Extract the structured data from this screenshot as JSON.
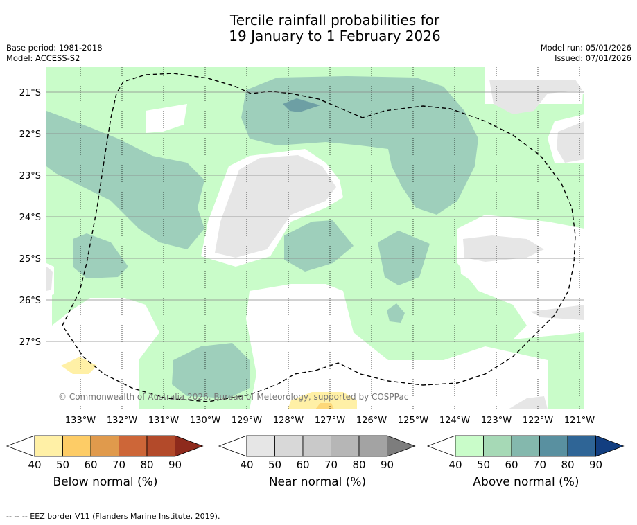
{
  "title_line1": "Tercile rainfall probabilities for",
  "title_line2": "19 January to 1 February 2026",
  "base_period": "Base period: 1981-2018",
  "model": "Model: ACCESS-S2",
  "model_run": "Model run: 05/01/2026",
  "issued": "Issued: 07/01/2026",
  "copyright": "© Commonwealth of Australia 2026, Bureau of Meteorology, supported by COSPPac",
  "lat_labels": [
    "21°S",
    "22°S",
    "23°S",
    "24°S",
    "25°S",
    "26°S",
    "27°S"
  ],
  "lon_labels": [
    "133°W",
    "132°W",
    "131°W",
    "130°W",
    "129°W",
    "128°W",
    "127°W",
    "126°W",
    "125°W",
    "124°W",
    "123°W",
    "122°W",
    "121°W"
  ],
  "colorbars": [
    {
      "title": "Below normal (%)",
      "ticks": [
        "40",
        "50",
        "60",
        "70",
        "80",
        "90"
      ],
      "colors": [
        "#ffffff",
        "#fff0a6",
        "#fdcc66",
        "#e09a4c",
        "#cd6638",
        "#b34a2a",
        "#8e2a1c"
      ]
    },
    {
      "title": "Near normal (%)",
      "ticks": [
        "40",
        "50",
        "60",
        "70",
        "80",
        "90"
      ],
      "colors": [
        "#ffffff",
        "#e6e6e6",
        "#d8d8d8",
        "#c9c9c9",
        "#b6b6b6",
        "#a3a3a3",
        "#7d7d7d"
      ]
    },
    {
      "title": "Above normal (%)",
      "ticks": [
        "40",
        "50",
        "60",
        "70",
        "80",
        "90"
      ],
      "colors": [
        "#ffffff",
        "#c9fcc9",
        "#a6d9b6",
        "#84b8ad",
        "#5990a0",
        "#2f6596",
        "#123e80"
      ]
    }
  ],
  "footnote": "--  --  -- EEZ border V11 (Flanders Marine Institute, 2019).",
  "colors": {
    "above40": "#c9fcc9",
    "above50": "#9ecfbb",
    "above60": "#6d9fa4",
    "near40": "#e6e6e6",
    "below40": "#fff0a6",
    "below50": "#fdd879"
  }
}
